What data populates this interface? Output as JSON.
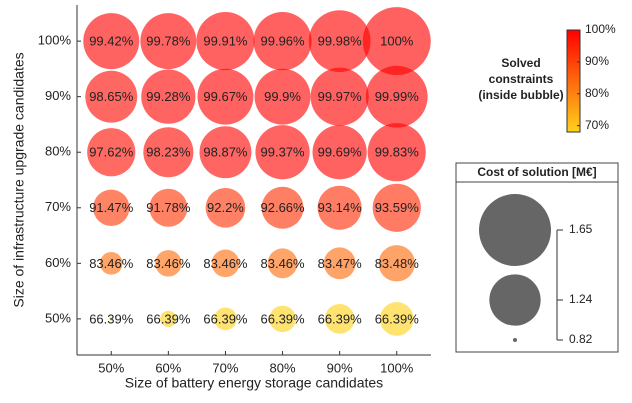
{
  "chart_data": {
    "type": "bubble",
    "x_label": "Size of battery energy storage candidates",
    "y_label": "Size of infrastructure upgrade candidates",
    "xlim": [
      44,
      106
    ],
    "ylim": [
      43.5,
      106.5
    ],
    "xticks": [
      {
        "value": 50,
        "label": "50%"
      },
      {
        "value": 60,
        "label": "60%"
      },
      {
        "value": 70,
        "label": "70%"
      },
      {
        "value": 80,
        "label": "80%"
      },
      {
        "value": 90,
        "label": "90%"
      },
      {
        "value": 100,
        "label": "100%"
      }
    ],
    "yticks": [
      {
        "value": 50,
        "label": "50%"
      },
      {
        "value": 60,
        "label": "60%"
      },
      {
        "value": 70,
        "label": "70%"
      },
      {
        "value": 80,
        "label": "80%"
      },
      {
        "value": 90,
        "label": "90%"
      },
      {
        "value": 100,
        "label": "100%"
      }
    ],
    "x": [
      50,
      60,
      70,
      80,
      90,
      100,
      50,
      60,
      70,
      80,
      90,
      100,
      50,
      60,
      70,
      80,
      90,
      100,
      50,
      60,
      70,
      80,
      90,
      100,
      50,
      60,
      70,
      80,
      90,
      100,
      50,
      60,
      70,
      80,
      90,
      100
    ],
    "y": [
      50,
      50,
      50,
      50,
      50,
      50,
      60,
      60,
      60,
      60,
      60,
      60,
      70,
      70,
      70,
      70,
      70,
      70,
      80,
      80,
      80,
      80,
      80,
      80,
      90,
      90,
      90,
      90,
      90,
      90,
      100,
      100,
      100,
      100,
      100,
      100
    ],
    "values": [
      66.39,
      66.39,
      66.39,
      66.39,
      66.39,
      66.39,
      83.46,
      83.46,
      83.46,
      83.46,
      83.47,
      83.48,
      91.47,
      91.78,
      92.2,
      92.66,
      93.14,
      93.59,
      97.62,
      98.23,
      98.87,
      99.37,
      99.69,
      99.83,
      98.65,
      99.28,
      99.67,
      99.9,
      99.97,
      99.99,
      99.42,
      99.78,
      99.91,
      99.96,
      99.98,
      100
    ],
    "value_labels": [
      "66.39%",
      "66.39%",
      "66.39%",
      "66.39%",
      "66.39%",
      "66.39%",
      "83.46%",
      "83.46%",
      "83.46%",
      "83.46%",
      "83.47%",
      "83.48%",
      "91.47%",
      "91.78%",
      "92.2%",
      "92.66%",
      "93.14%",
      "93.59%",
      "97.62%",
      "98.23%",
      "98.87%",
      "99.37%",
      "99.69%",
      "99.83%",
      "98.65%",
      "99.28%",
      "99.67%",
      "99.9%",
      "99.97%",
      "99.99%",
      "99.42%",
      "99.78%",
      "99.91%",
      "99.96%",
      "99.98%",
      "100%"
    ],
    "sizes": [
      0.82,
      0.86,
      0.9,
      0.93,
      0.96,
      1.0,
      0.9,
      0.93,
      0.94,
      0.96,
      0.98,
      1.03,
      1.03,
      1.05,
      1.07,
      1.1,
      1.13,
      1.19,
      1.19,
      1.22,
      1.25,
      1.29,
      1.29,
      1.36,
      1.25,
      1.29,
      1.32,
      1.32,
      1.36,
      1.43,
      1.32,
      1.32,
      1.36,
      1.36,
      1.43,
      1.56
    ],
    "colorbar": {
      "title": [
        "Solved",
        "constraints",
        "(inside bubble)"
      ],
      "clim": [
        68,
        100
      ],
      "colors": [
        "#ffd21a",
        "#ff0000"
      ],
      "ticks": [
        {
          "value": 70,
          "label": "70%"
        },
        {
          "value": 80,
          "label": "80%"
        },
        {
          "value": 90,
          "label": "90%"
        },
        {
          "value": 100,
          "label": "100%"
        }
      ]
    },
    "size_legend": {
      "title": "Cost of solution [M€]",
      "color": "#666666",
      "values": [
        1.65,
        1.24,
        0.82
      ]
    }
  }
}
